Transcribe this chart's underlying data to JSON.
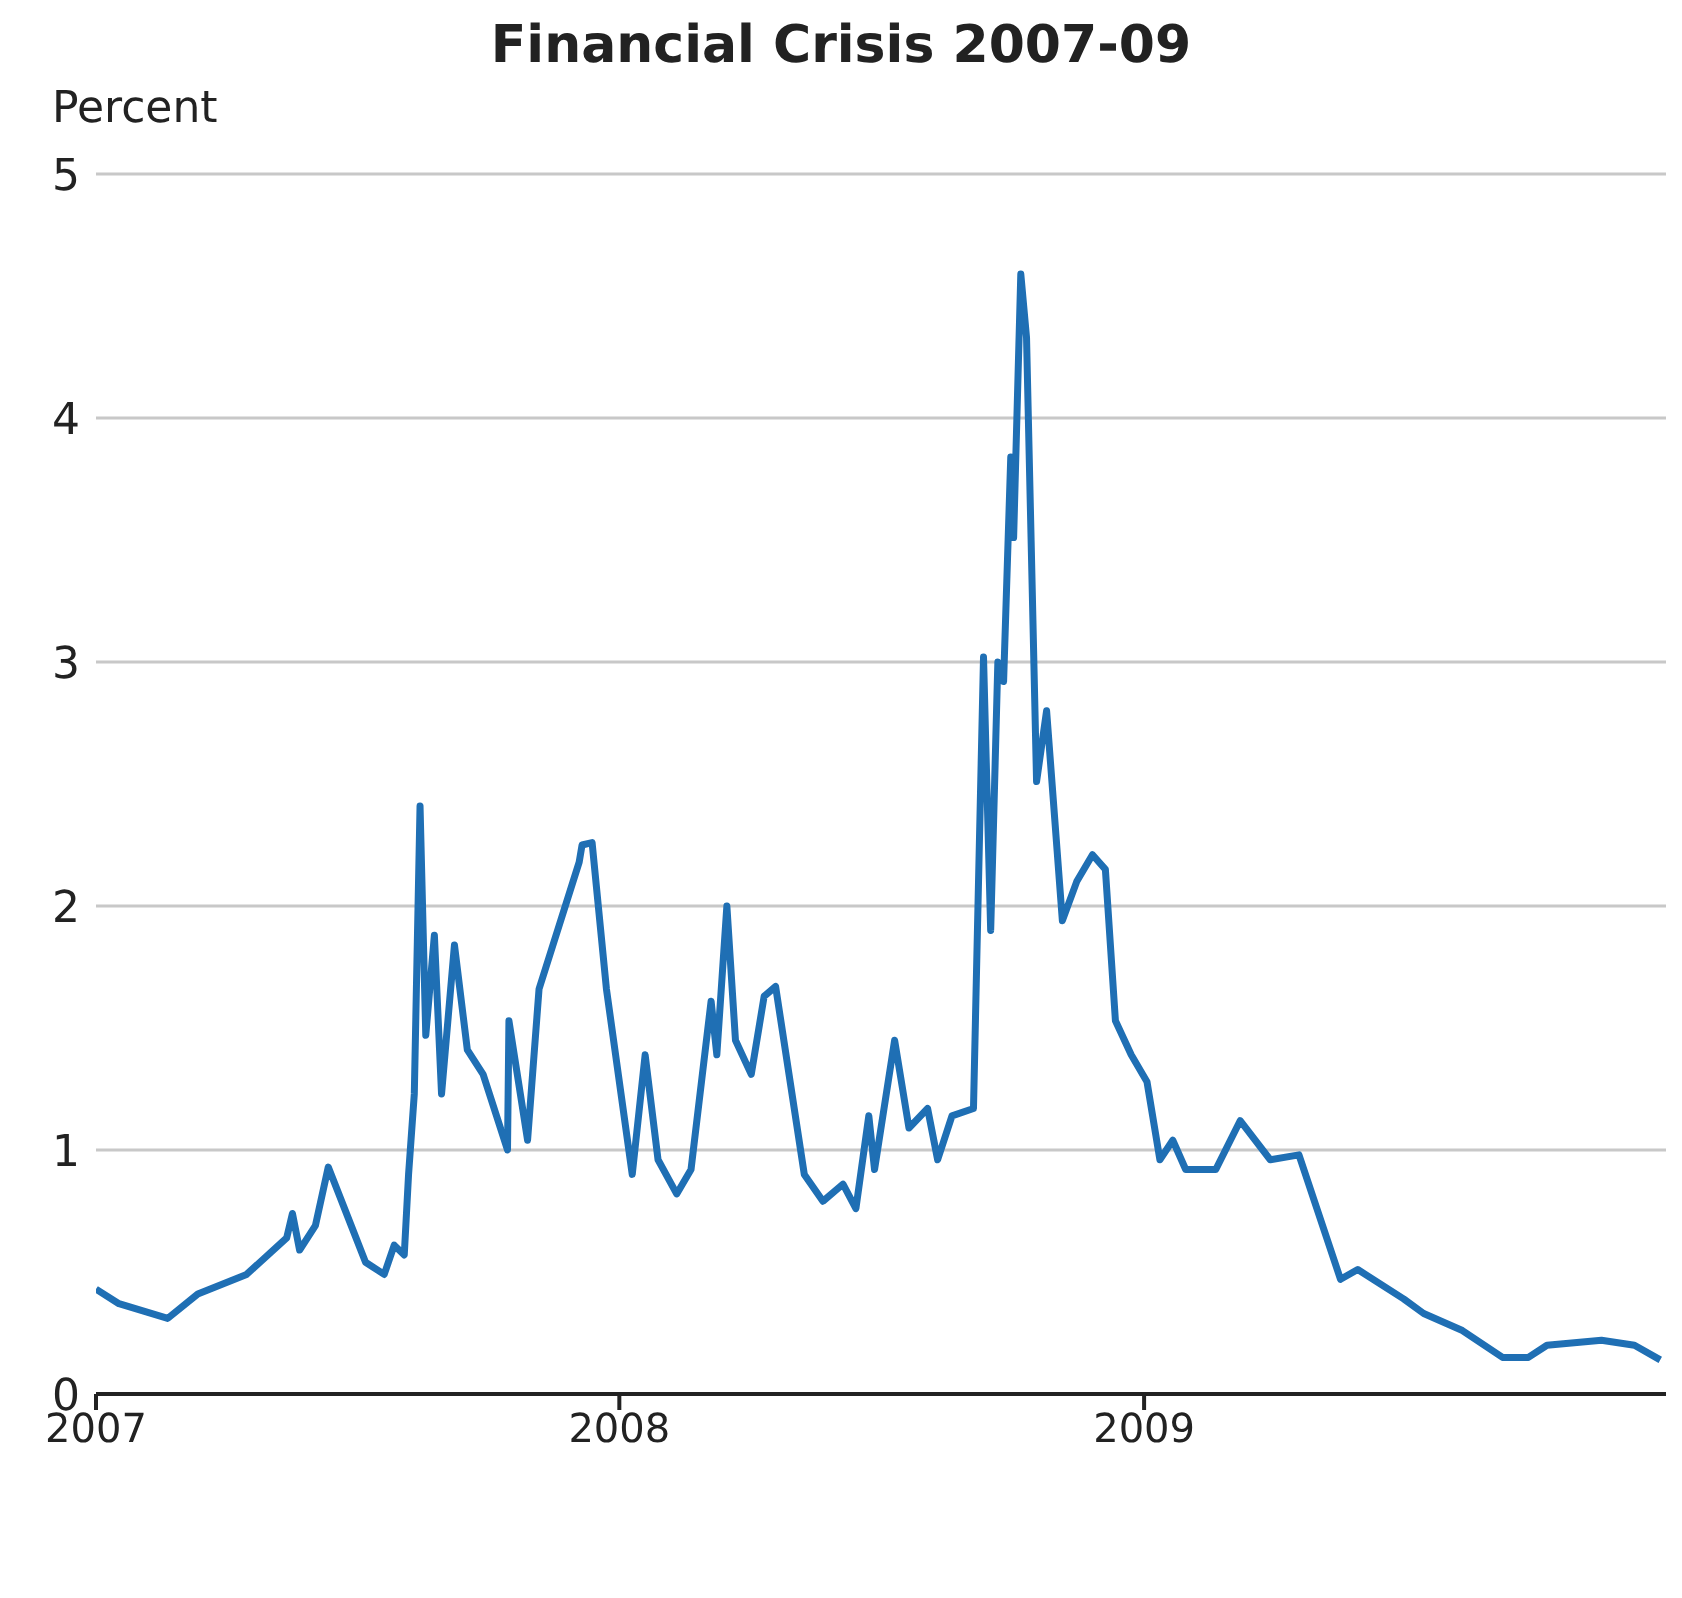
{
  "chart_data": {
    "type": "line",
    "title": "Financial Crisis 2007-09",
    "ylabel": "Percent",
    "x": [
      "2007-01-01",
      "2007-01-17",
      "2007-02-20",
      "2007-03-13",
      "2007-04-16",
      "2007-05-14",
      "2007-05-18",
      "2007-05-23",
      "2007-06-03",
      "2007-06-12",
      "2007-06-28",
      "2007-07-08",
      "2007-07-21",
      "2007-07-28",
      "2007-08-04",
      "2007-08-07",
      "2007-08-11",
      "2007-08-15",
      "2007-08-19",
      "2007-08-25",
      "2007-08-30",
      "2007-09-08",
      "2007-09-17",
      "2007-09-28",
      "2007-10-15",
      "2007-10-16",
      "2007-10-29",
      "2007-11-06",
      "2007-12-04",
      "2007-12-06",
      "2007-12-13",
      "2007-12-23",
      "2008-01-10",
      "2008-01-19",
      "2008-01-28",
      "2008-02-10",
      "2008-02-20",
      "2008-03-05",
      "2008-03-09",
      "2008-03-16",
      "2008-03-22",
      "2008-04-02",
      "2008-04-11",
      "2008-04-19",
      "2008-05-09",
      "2008-05-22",
      "2008-06-05",
      "2008-06-14",
      "2008-06-23",
      "2008-06-27",
      "2008-07-11",
      "2008-07-21",
      "2008-08-03",
      "2008-08-10",
      "2008-08-20",
      "2008-09-04",
      "2008-09-11",
      "2008-09-16",
      "2008-09-21",
      "2008-09-25",
      "2008-09-30",
      "2008-10-02",
      "2008-10-07",
      "2008-10-11",
      "2008-10-18",
      "2008-10-25",
      "2008-11-05",
      "2008-11-15",
      "2008-11-26",
      "2008-12-05",
      "2008-12-12",
      "2008-12-23",
      "2009-01-03",
      "2009-01-12",
      "2009-01-21",
      "2009-01-30",
      "2009-02-20",
      "2009-03-09",
      "2009-03-30",
      "2009-04-19",
      "2009-05-18",
      "2009-05-30",
      "2009-07-01",
      "2009-07-15",
      "2009-08-11",
      "2009-09-08",
      "2009-09-26",
      "2009-10-09",
      "2009-11-16",
      "2009-12-09",
      "2009-12-27"
    ],
    "series": [
      {
        "color": "#1f6fb4",
        "values": [
          0.43,
          0.37,
          0.31,
          0.41,
          0.49,
          0.64,
          0.74,
          0.59,
          0.69,
          0.93,
          0.69,
          0.54,
          0.49,
          0.61,
          0.57,
          0.9,
          1.23,
          2.41,
          1.47,
          1.88,
          1.23,
          1.84,
          1.41,
          1.31,
          1.0,
          1.53,
          1.04,
          1.66,
          2.18,
          2.25,
          2.26,
          1.66,
          0.9,
          1.39,
          0.96,
          0.82,
          0.92,
          1.61,
          1.39,
          2.0,
          1.45,
          1.31,
          1.63,
          1.67,
          0.9,
          0.79,
          0.86,
          0.76,
          1.14,
          0.92,
          1.45,
          1.09,
          1.17,
          0.96,
          1.14,
          1.17,
          3.02,
          1.9,
          3.0,
          2.92,
          3.84,
          3.51,
          4.59,
          4.33,
          2.51,
          2.8,
          1.94,
          2.1,
          2.21,
          2.15,
          1.53,
          1.39,
          1.28,
          0.96,
          1.04,
          0.92,
          0.92,
          1.12,
          0.96,
          0.98,
          0.47,
          0.51,
          0.39,
          0.33,
          0.26,
          0.15,
          0.15,
          0.2,
          0.22,
          0.2,
          0.14
        ]
      }
    ],
    "xlim": [
      "2007-01-01",
      "2009-12-31"
    ],
    "xticks": [
      "2007",
      "2008",
      "2009"
    ],
    "ylim": [
      0,
      5
    ],
    "yticks": [
      0,
      1,
      2,
      3,
      4,
      5
    ],
    "grid": "y",
    "legend": false,
    "marker": "none",
    "line_style": "solid"
  }
}
